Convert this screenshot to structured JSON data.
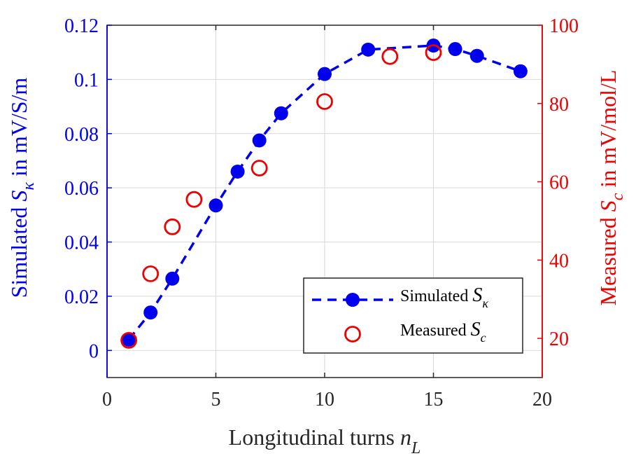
{
  "chart_data": {
    "type": "line+scatter",
    "xlabel": {
      "main": "Longitudinal turns ",
      "var": "n",
      "sub": "L"
    },
    "ylabel_left": {
      "pre": "Simulated ",
      "var": "S",
      "sub": "κ",
      "post": " in mV/S/m"
    },
    "ylabel_right": {
      "pre": "Measured ",
      "var": "S",
      "sub": "c",
      "post": " in mV/mol/L"
    },
    "xlim": [
      0,
      20
    ],
    "ylim_left": [
      -0.01,
      0.12
    ],
    "ylim_right": [
      10,
      100
    ],
    "x_ticks": [
      0,
      5,
      10,
      15,
      20
    ],
    "x_tick_labels": [
      "0",
      "5",
      "10",
      "15",
      "20"
    ],
    "y_left_ticks": [
      0,
      0.02,
      0.04,
      0.06,
      0.08,
      0.1,
      0.12
    ],
    "y_left_tick_labels": [
      "0",
      "0.02",
      "0.04",
      "0.06",
      "0.08",
      "0.1",
      "0.12"
    ],
    "y_right_ticks": [
      20,
      40,
      60,
      80,
      100
    ],
    "y_right_tick_labels": [
      "20",
      "40",
      "60",
      "80",
      "100"
    ],
    "grid": true,
    "legend_position": "bottom-right",
    "colors": {
      "simulated": "#0000ee",
      "measured": "#ee0000",
      "axis": "#262626",
      "grid": "#d9d9d9"
    },
    "series": [
      {
        "name": "Simulated S_κ",
        "legend": {
          "pre": "Simulated ",
          "var": "S",
          "sub": "κ"
        },
        "axis": "left",
        "style": "dashed-line-filled-circle",
        "x": [
          1,
          2,
          3,
          5,
          6,
          7,
          8,
          10,
          12,
          15,
          16,
          17,
          19
        ],
        "y": [
          0.004,
          0.014,
          0.0265,
          0.0535,
          0.066,
          0.0775,
          0.0875,
          0.102,
          0.111,
          0.1125,
          0.1112,
          0.1087,
          0.103
        ]
      },
      {
        "name": "Measured S_c",
        "legend": {
          "pre": "Measured ",
          "var": "S",
          "sub": "c"
        },
        "axis": "right",
        "style": "open-circle",
        "x": [
          1,
          2,
          3,
          4,
          7,
          10,
          13,
          15
        ],
        "y": [
          19.5,
          36.5,
          48.5,
          55.5,
          63.5,
          80.5,
          92,
          93
        ]
      }
    ]
  }
}
